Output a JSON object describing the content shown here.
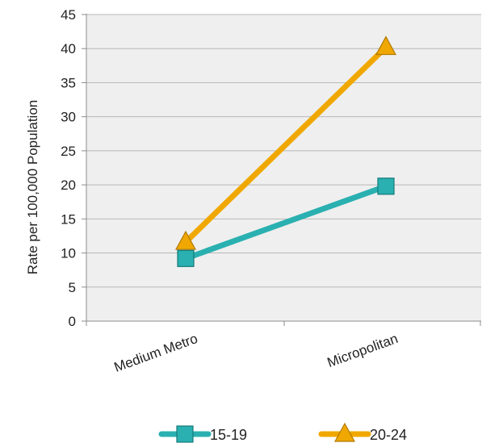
{
  "chart_data": {
    "type": "line",
    "title": "",
    "xlabel": "",
    "ylabel": "Rate per 100,000 Population",
    "categories": [
      "Medium Metro",
      "Micropolitan"
    ],
    "ylim": [
      0,
      45
    ],
    "yticks": [
      0,
      5,
      10,
      15,
      20,
      25,
      30,
      35,
      40,
      45
    ],
    "grid": true,
    "legend_position": "bottom",
    "series": [
      {
        "name": "15-19",
        "values": [
          9.2,
          19.8
        ],
        "color": "#2ab0b0",
        "marker": "square"
      },
      {
        "name": "20-24",
        "values": [
          11.6,
          40.2
        ],
        "color": "#f0a800",
        "marker": "triangle"
      }
    ]
  },
  "colors": {
    "plot_background": "#efefef",
    "gridline": "#b8b8b8",
    "axis": "#8c8c8c"
  }
}
